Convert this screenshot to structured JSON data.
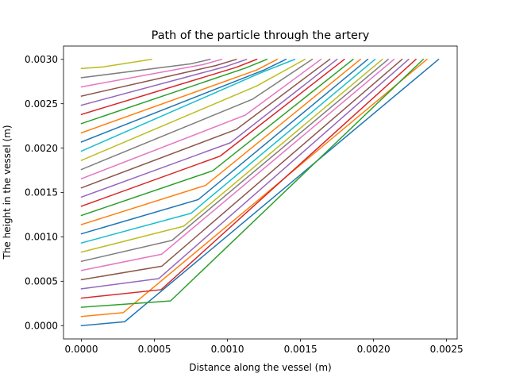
{
  "chart_data": {
    "type": "line",
    "title": "Path of the particle through the artery",
    "xlabel": "Distance along the vessel (m)",
    "ylabel": "The height in the vessel (m)",
    "xlim": [
      -0.0001225,
      0.0025725
    ],
    "ylim": [
      -0.00015,
      0.00315
    ],
    "xticks": [
      0,
      0.0005,
      0.001,
      0.0015,
      0.002,
      0.0025
    ],
    "xtick_labels": [
      "0.0000",
      "0.0005",
      "0.0010",
      "0.0015",
      "0.0020",
      "0.0025"
    ],
    "yticks": [
      0,
      0.0005,
      0.001,
      0.0015,
      0.002,
      0.0025,
      0.003
    ],
    "ytick_labels": [
      "0.0000",
      "0.0005",
      "0.0010",
      "0.0015",
      "0.0020",
      "0.0025",
      "0.0030"
    ],
    "grid": false,
    "legend": false,
    "colors": [
      "#1f77b4",
      "#ff7f0e",
      "#2ca02c",
      "#d62728",
      "#9467bd",
      "#8c564b",
      "#e377c2",
      "#7f7f7f",
      "#bcbd22",
      "#17becf"
    ],
    "series": [
      {
        "points": [
          [
            0,
            0
          ],
          [
            0.000296,
            4.34e-05
          ],
          [
            0.002445,
            0.003
          ]
        ]
      },
      {
        "points": [
          [
            0,
            0.000103
          ],
          [
            0.000286,
            0.000146
          ],
          [
            0.002365,
            0.003
          ]
        ]
      },
      {
        "points": [
          [
            0,
            0.000207
          ],
          [
            0.00061,
            0.000278
          ],
          [
            0.00234,
            0.003
          ]
        ]
      },
      {
        "points": [
          [
            0,
            0.00031
          ],
          [
            0.000546,
            0.000405
          ],
          [
            0.00229,
            0.003
          ]
        ]
      },
      {
        "points": [
          [
            0,
            0.000414
          ],
          [
            0.00053,
            0.00053
          ],
          [
            0.00224,
            0.003
          ]
        ]
      },
      {
        "points": [
          [
            0,
            0.000517
          ],
          [
            0.00055,
            0.000669
          ],
          [
            0.002195,
            0.003
          ]
        ]
      },
      {
        "points": [
          [
            0,
            0.000621
          ],
          [
            0.00055,
            0.000805
          ],
          [
            0.00214,
            0.003
          ]
        ]
      },
      {
        "points": [
          [
            0,
            0.000724
          ],
          [
            0.00062,
            0.00096
          ],
          [
            0.0021,
            0.003
          ]
        ]
      },
      {
        "points": [
          [
            0,
            0.000828
          ],
          [
            0.0007,
            0.00112
          ],
          [
            0.00206,
            0.003
          ]
        ]
      },
      {
        "points": [
          [
            0,
            0.000931
          ],
          [
            0.00075,
            0.001265
          ],
          [
            0.00201,
            0.003
          ]
        ]
      },
      {
        "points": [
          [
            0,
            0.001034
          ],
          [
            0.0008,
            0.00142
          ],
          [
            0.00196,
            0.003
          ]
        ]
      },
      {
        "points": [
          [
            0,
            0.001138
          ],
          [
            0.00085,
            0.00158
          ],
          [
            0.00191,
            0.003
          ]
        ]
      },
      {
        "points": [
          [
            0,
            0.001241
          ],
          [
            0.0009,
            0.001745
          ],
          [
            0.00186,
            0.003
          ]
        ]
      },
      {
        "points": [
          [
            0,
            0.001345
          ],
          [
            0.00095,
            0.00191
          ],
          [
            0.0018,
            0.003
          ]
        ]
      },
      {
        "points": [
          [
            0,
            0.001448
          ],
          [
            0.00102,
            0.00206
          ],
          [
            0.00175,
            0.003
          ]
        ]
      },
      {
        "points": [
          [
            0,
            0.001552
          ],
          [
            0.00106,
            0.00221
          ],
          [
            0.0017,
            0.003
          ]
        ]
      },
      {
        "points": [
          [
            0,
            0.001655
          ],
          [
            0.00112,
            0.00237
          ],
          [
            0.00164,
            0.003
          ]
        ]
      },
      {
        "points": [
          [
            0,
            0.001759
          ],
          [
            0.00117,
            0.00255
          ],
          [
            0.00158,
            0.003
          ]
        ]
      },
      {
        "points": [
          [
            0,
            0.001862
          ],
          [
            0.0012,
            0.0027
          ],
          [
            0.00153,
            0.003
          ]
        ]
      },
      {
        "points": [
          [
            0,
            0.001966
          ],
          [
            0.00123,
            0.00285
          ],
          [
            0.00146,
            0.003
          ]
        ]
      },
      {
        "points": [
          [
            0,
            0.002069
          ],
          [
            0.00125,
            0.00288
          ],
          [
            0.0014,
            0.003
          ]
        ]
      },
      {
        "points": [
          [
            0,
            0.002172
          ],
          [
            0.0012,
            0.00288
          ],
          [
            0.00134,
            0.003
          ]
        ]
      },
      {
        "points": [
          [
            0,
            0.002276
          ],
          [
            0.00112,
            0.0029
          ],
          [
            0.00127,
            0.003
          ]
        ]
      },
      {
        "points": [
          [
            0,
            0.002379
          ],
          [
            0.00106,
            0.00291
          ],
          [
            0.0012,
            0.003
          ]
        ]
      },
      {
        "points": [
          [
            0,
            0.002483
          ],
          [
            0.00099,
            0.00292
          ],
          [
            0.00113,
            0.003
          ]
        ]
      },
      {
        "points": [
          [
            0,
            0.002586
          ],
          [
            0.00092,
            0.00293
          ],
          [
            0.00106,
            0.003
          ]
        ]
      },
      {
        "points": [
          [
            0,
            0.00269
          ],
          [
            0.00083,
            0.00294
          ],
          [
            0.00096,
            0.003
          ]
        ]
      },
      {
        "points": [
          [
            0,
            0.002793
          ],
          [
            0.00075,
            0.00295
          ],
          [
            0.00088,
            0.003
          ]
        ]
      },
      {
        "points": [
          [
            0,
            0.002897
          ],
          [
            0.00015,
            0.002915
          ],
          [
            0.00048,
            0.003
          ]
        ]
      }
    ]
  }
}
